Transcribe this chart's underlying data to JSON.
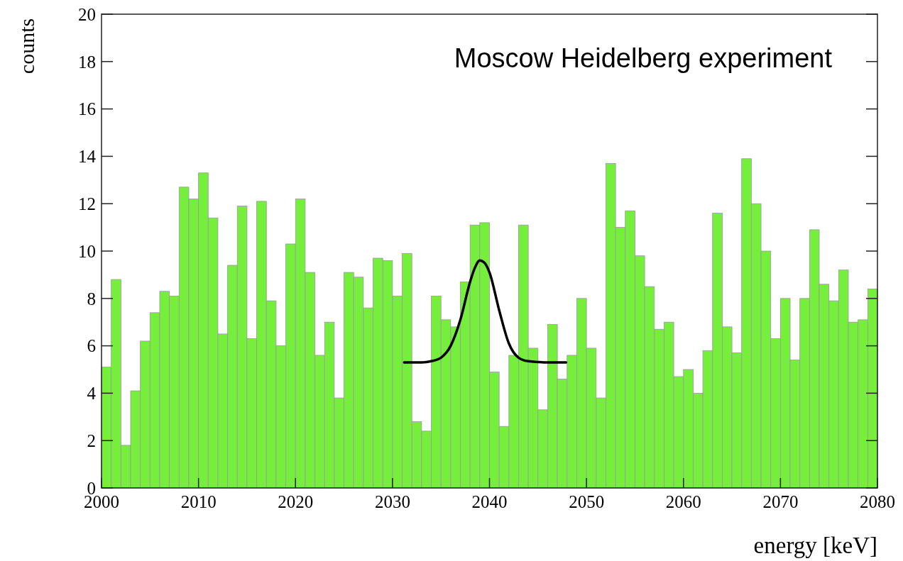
{
  "chart_data": {
    "type": "histogram",
    "xlabel": "energy [keV]",
    "ylabel": "counts",
    "annotations": [
      "Moscow Heidelberg experiment"
    ],
    "bins": [
      2000,
      2001,
      2002,
      2003,
      2004,
      2005,
      2006,
      2007,
      2008,
      2009,
      2010,
      2011,
      2012,
      2013,
      2014,
      2015,
      2016,
      2017,
      2018,
      2019,
      2020,
      2021,
      2022,
      2023,
      2024,
      2025,
      2026,
      2027,
      2028,
      2029,
      2030,
      2031,
      2032,
      2033,
      2034,
      2035,
      2036,
      2037,
      2038,
      2039,
      2040,
      2041,
      2042,
      2043,
      2044,
      2045,
      2046,
      2047,
      2048,
      2049,
      2050,
      2051,
      2052,
      2053,
      2054,
      2055,
      2056,
      2057,
      2058,
      2059,
      2060,
      2061,
      2062,
      2063,
      2064,
      2065,
      2066,
      2067,
      2068,
      2069,
      2070,
      2071,
      2072,
      2073,
      2074,
      2075,
      2076,
      2077,
      2078,
      2079,
      2080
    ],
    "series": [
      {
        "color": "#76ee3c",
        "values": [
          5.1,
          8.8,
          1.8,
          4.1,
          6.2,
          7.4,
          8.3,
          8.1,
          12.7,
          12.2,
          13.3,
          11.4,
          6.5,
          9.4,
          11.9,
          6.3,
          12.1,
          7.9,
          6.0,
          10.3,
          12.2,
          9.1,
          5.6,
          7.0,
          3.8,
          9.1,
          8.9,
          7.6,
          9.7,
          9.6,
          8.1,
          9.9,
          2.8,
          2.4,
          8.1,
          7.1,
          6.8,
          8.7,
          11.1,
          11.2,
          4.9,
          2.6,
          5.6,
          11.1,
          5.9,
          3.3,
          6.9,
          4.6,
          5.6,
          8.0,
          5.9,
          3.8,
          13.7,
          11.0,
          11.7,
          9.8,
          8.5,
          6.7,
          7.0,
          4.7,
          5.0,
          4.0,
          5.8,
          11.6,
          6.8,
          5.7,
          13.9,
          12.0,
          10.0,
          6.3,
          8.0,
          5.4,
          8.0,
          10.9,
          8.6,
          7.9,
          9.2,
          7.0,
          7.1,
          8.4
        ]
      },
      {
        "type": "line",
        "color": "#000000",
        "x": [
          2031.2,
          2033,
          2034,
          2035,
          2036,
          2037,
          2038,
          2038.5,
          2039,
          2039.5,
          2040,
          2041,
          2042,
          2043,
          2044,
          2046,
          2047.9
        ],
        "values": [
          5.3,
          5.3,
          5.35,
          5.5,
          6.0,
          7.1,
          8.7,
          9.3,
          9.6,
          9.5,
          9.1,
          7.5,
          6.1,
          5.5,
          5.35,
          5.3,
          5.3
        ]
      }
    ],
    "xlim": [
      2000,
      2080
    ],
    "xticks": [
      2000,
      2010,
      2020,
      2030,
      2040,
      2050,
      2060,
      2070,
      2080
    ],
    "ylim": [
      0,
      20
    ],
    "yticks": [
      0,
      2,
      4,
      6,
      8,
      10,
      12,
      14,
      16,
      18,
      20
    ],
    "grid": false
  }
}
